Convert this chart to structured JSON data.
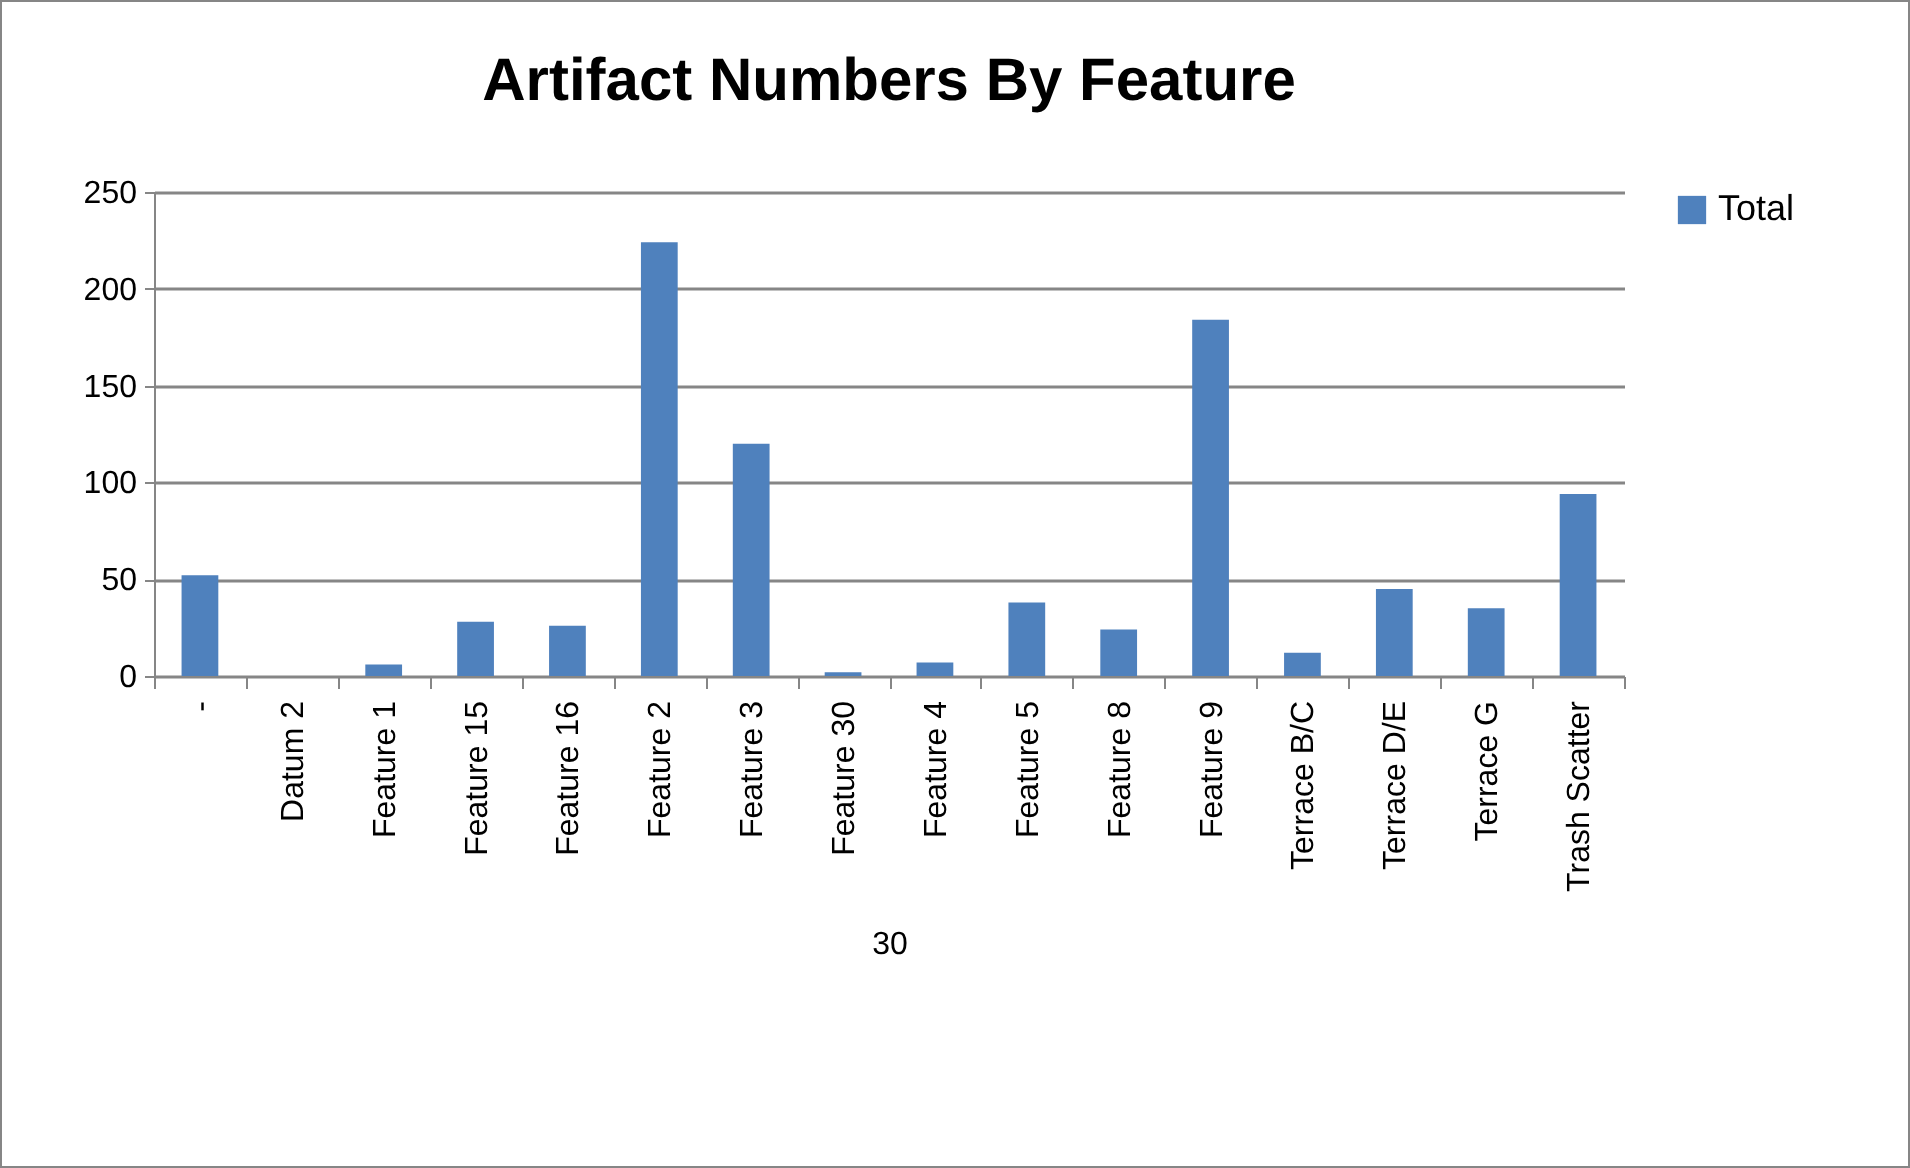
{
  "chart_data": {
    "type": "bar",
    "title": "Artifact Numbers By Feature",
    "xlabel": "30",
    "categories": [
      "-",
      "Datum 2",
      "Feature 1",
      "Feature 15",
      "Feature 16",
      "Feature 2",
      "Feature 3",
      "Feature 30",
      "Feature 4",
      "Feature 5",
      "Feature 8",
      "Feature 9",
      "Terrace B/C",
      "Terrace D/E",
      "Terrace G",
      "Trash Scatter"
    ],
    "series": [
      {
        "name": "Total",
        "color": "#4f81bd",
        "values": [
          52,
          0,
          6,
          28,
          26,
          224,
          120,
          2,
          7,
          38,
          24,
          184,
          12,
          45,
          35,
          94
        ]
      }
    ],
    "ylim": [
      0,
      250
    ],
    "yticks": [
      0,
      50,
      100,
      150,
      200,
      250
    ],
    "grid": "y",
    "legend": "right"
  }
}
